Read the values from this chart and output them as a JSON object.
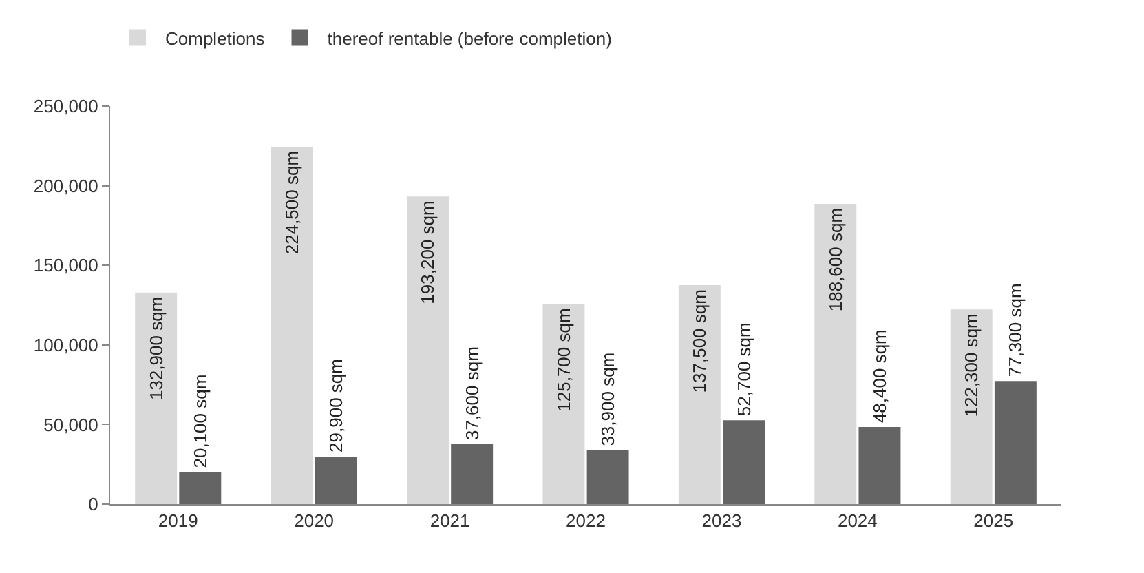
{
  "chart_data": {
    "type": "bar",
    "categories": [
      "2019",
      "2020",
      "2021",
      "2022",
      "2023",
      "2024",
      "2025"
    ],
    "series": [
      {
        "name": "Completions",
        "color": "#d9d9d9",
        "values": [
          132900,
          224500,
          193200,
          125700,
          137500,
          188600,
          122300
        ],
        "value_labels": [
          "132,900 sqm",
          "224,500 sqm",
          "193,200 sqm",
          "125,700 sqm",
          "137,500 sqm",
          "188,600 sqm",
          "122,300 sqm"
        ]
      },
      {
        "name": "thereof rentable (before completion)",
        "color": "#646464",
        "values": [
          20100,
          29900,
          37600,
          33900,
          52700,
          48400,
          77300
        ],
        "value_labels": [
          "20,100 sqm",
          "29,900 sqm",
          "37,600 sqm",
          "33,900 sqm",
          "52,700 sqm",
          "48,400 sqm",
          "77,300 sqm"
        ]
      }
    ],
    "ylim": [
      0,
      250000
    ],
    "yticks": [
      {
        "value": 0,
        "label": "0"
      },
      {
        "value": 50000,
        "label": "50,000"
      },
      {
        "value": 100000,
        "label": "100,000"
      },
      {
        "value": 150000,
        "label": "150,000"
      },
      {
        "value": 200000,
        "label": "200,000"
      },
      {
        "value": 250000,
        "label": "250,000"
      }
    ],
    "legend": "top left"
  }
}
